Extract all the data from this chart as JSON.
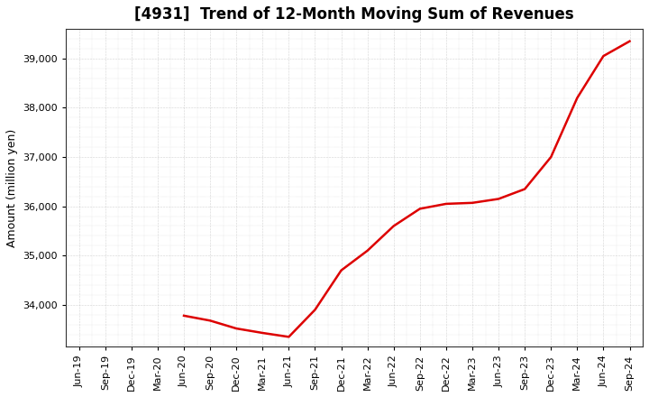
{
  "title": "[4931]  Trend of 12-Month Moving Sum of Revenues",
  "ylabel": "Amount (million yen)",
  "line_color": "#dd0000",
  "line_width": 1.8,
  "background_color": "#ffffff",
  "grid_color": "#999999",
  "x_labels": [
    "Jun-19",
    "Sep-19",
    "Dec-19",
    "Mar-20",
    "Jun-20",
    "Sep-20",
    "Dec-20",
    "Mar-21",
    "Jun-21",
    "Sep-21",
    "Dec-21",
    "Mar-22",
    "Jun-22",
    "Sep-22",
    "Dec-22",
    "Mar-23",
    "Jun-23",
    "Sep-23",
    "Dec-23",
    "Mar-24",
    "Jun-24",
    "Sep-24"
  ],
  "y_values": [
    null,
    null,
    null,
    null,
    33780,
    33680,
    33520,
    33430,
    33350,
    33900,
    34700,
    35100,
    35600,
    35950,
    36050,
    36070,
    36150,
    36350,
    37000,
    38200,
    39050,
    39350
  ],
  "ylim_low": 33150,
  "ylim_high": 39600,
  "yticks": [
    34000,
    35000,
    36000,
    37000,
    38000,
    39000
  ],
  "title_fontsize": 12,
  "ylabel_fontsize": 9,
  "tick_fontsize": 8
}
